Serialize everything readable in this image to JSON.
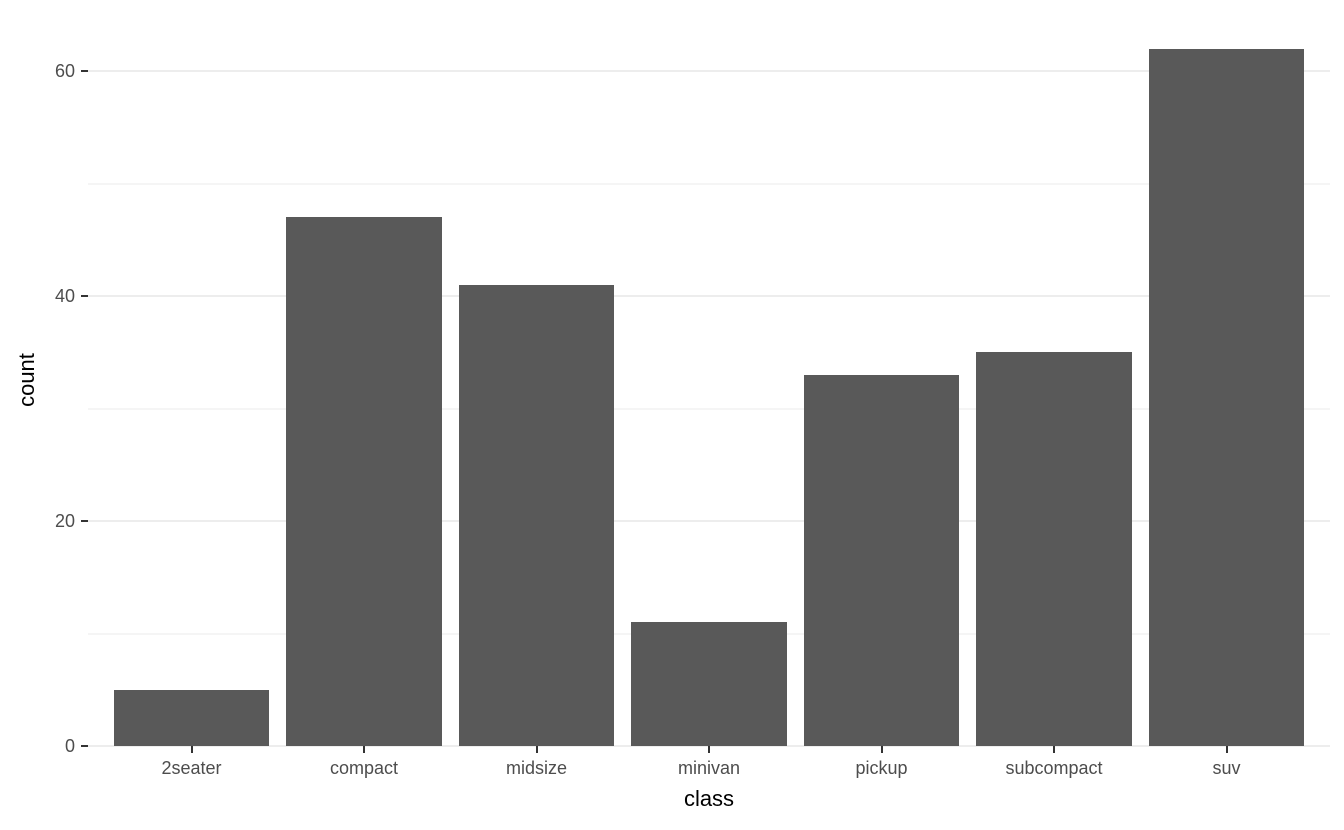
{
  "chart_data": {
    "type": "bar",
    "title": "",
    "categories": [
      "2seater",
      "compact",
      "midsize",
      "minivan",
      "pickup",
      "subcompact",
      "suv"
    ],
    "values": [
      5,
      47,
      41,
      11,
      33,
      35,
      62
    ],
    "xlabel": "class",
    "ylabel": "count",
    "ylim": [
      0,
      65
    ],
    "yticks": [
      0,
      20,
      40,
      60
    ],
    "yticks_minor": [
      10,
      30,
      50
    ],
    "grid": "horizontal major and minor gridlines, no vertical gridlines",
    "legend_position": "none",
    "colors": {
      "bar_fill": "#595959",
      "background": "#ffffff",
      "gridline_major": "#ededed",
      "gridline_minor": "#f5f5f5",
      "axis_tick": "#333333",
      "tick_label": "#4d4d4d",
      "axis_title": "#000000"
    }
  }
}
